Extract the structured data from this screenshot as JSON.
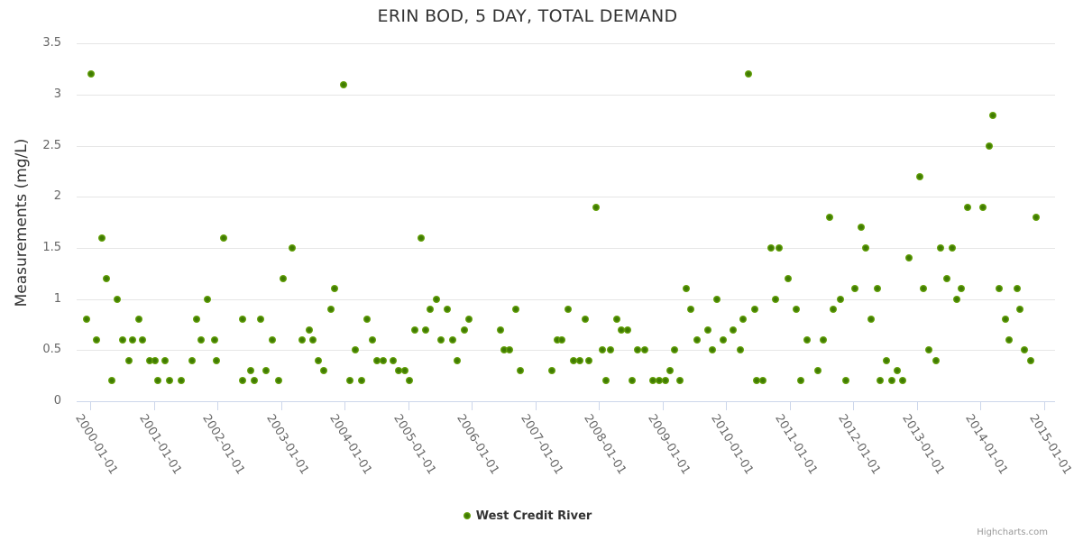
{
  "title": "ERIN BOD, 5 DAY, TOTAL DEMAND",
  "credits_label": "Highcharts.com",
  "legend": {
    "items": [
      {
        "label": "West Credit River",
        "color": "#5f9c07"
      }
    ]
  },
  "chart_data": {
    "type": "scatter",
    "title": "ERIN BOD, 5 DAY, TOTAL DEMAND",
    "xlabel": "",
    "ylabel": "Measurements (mg/L)",
    "ylim": [
      0,
      3.5
    ],
    "xlim_years": [
      1999.8,
      2015.2
    ],
    "grid": "horizontal",
    "legend_position": "bottom-center",
    "marker": {
      "shape": "circle",
      "fill": "#5f9c07",
      "center": "#3f7a03"
    },
    "yticks": [
      0,
      0.5,
      1,
      1.5,
      2,
      2.5,
      3,
      3.5
    ],
    "ytick_labels": [
      "0",
      "0.5",
      "1",
      "1.5",
      "2",
      "2.5",
      "3",
      "3.5"
    ],
    "xtick_labels": [
      "2000-01-01",
      "2001-01-01",
      "2002-01-01",
      "2003-01-01",
      "2004-01-01",
      "2005-01-01",
      "2006-01-01",
      "2007-01-01",
      "2008-01-01",
      "2009-01-01",
      "2010-01-01",
      "2011-01-01",
      "2012-01-01",
      "2013-01-01",
      "2014-01-01",
      "2015-01-01"
    ],
    "series": [
      {
        "name": "West Credit River",
        "points": [
          [
            2000.02,
            3.2
          ],
          [
            1999.94,
            0.8
          ],
          [
            2000.1,
            0.6
          ],
          [
            2000.18,
            1.6
          ],
          [
            2000.26,
            1.2
          ],
          [
            2000.34,
            0.2
          ],
          [
            2000.42,
            1.0
          ],
          [
            2000.51,
            0.6
          ],
          [
            2000.61,
            0.4
          ],
          [
            2000.67,
            0.6
          ],
          [
            2000.76,
            0.8
          ],
          [
            2000.82,
            0.6
          ],
          [
            2000.93,
            0.4
          ],
          [
            2001.02,
            0.4
          ],
          [
            2001.07,
            0.2
          ],
          [
            2001.17,
            0.4
          ],
          [
            2001.25,
            0.2
          ],
          [
            2001.43,
            0.2
          ],
          [
            2001.6,
            0.4
          ],
          [
            2001.68,
            0.8
          ],
          [
            2001.74,
            0.6
          ],
          [
            2001.85,
            1.0
          ],
          [
            2001.95,
            0.6
          ],
          [
            2001.99,
            0.4
          ],
          [
            2002.1,
            1.6
          ],
          [
            2002.4,
            0.8
          ],
          [
            2002.4,
            0.2
          ],
          [
            2002.52,
            0.3
          ],
          [
            2002.58,
            0.2
          ],
          [
            2002.68,
            0.8
          ],
          [
            2002.77,
            0.3
          ],
          [
            2002.86,
            0.6
          ],
          [
            2002.96,
            0.2
          ],
          [
            2003.03,
            1.2
          ],
          [
            2003.18,
            1.5
          ],
          [
            2003.33,
            0.6
          ],
          [
            2003.44,
            0.7
          ],
          [
            2003.5,
            0.6
          ],
          [
            2003.59,
            0.4
          ],
          [
            2003.68,
            0.3
          ],
          [
            2003.78,
            0.9
          ],
          [
            2003.84,
            1.1
          ],
          [
            2003.98,
            3.1
          ],
          [
            2004.09,
            0.2
          ],
          [
            2004.17,
            0.5
          ],
          [
            2004.27,
            0.2
          ],
          [
            2004.35,
            0.8
          ],
          [
            2004.44,
            0.6
          ],
          [
            2004.51,
            0.4
          ],
          [
            2004.61,
            0.4
          ],
          [
            2004.77,
            0.4
          ],
          [
            2004.85,
            0.3
          ],
          [
            2004.95,
            0.3
          ],
          [
            2005.02,
            0.2
          ],
          [
            2005.1,
            0.7
          ],
          [
            2005.2,
            1.6
          ],
          [
            2005.27,
            0.7
          ],
          [
            2005.35,
            0.9
          ],
          [
            2005.45,
            1.0
          ],
          [
            2005.52,
            0.6
          ],
          [
            2005.61,
            0.9
          ],
          [
            2005.7,
            0.6
          ],
          [
            2005.77,
            0.4
          ],
          [
            2005.88,
            0.7
          ],
          [
            2005.96,
            0.8
          ],
          [
            2006.46,
            0.7
          ],
          [
            2006.51,
            0.5
          ],
          [
            2006.6,
            0.5
          ],
          [
            2006.7,
            0.9
          ],
          [
            2006.76,
            0.3
          ],
          [
            2007.26,
            0.3
          ],
          [
            2007.35,
            0.6
          ],
          [
            2007.42,
            0.6
          ],
          [
            2007.51,
            0.9
          ],
          [
            2007.6,
            0.4
          ],
          [
            2007.7,
            0.4
          ],
          [
            2007.79,
            0.8
          ],
          [
            2007.84,
            0.4
          ],
          [
            2007.95,
            1.9
          ],
          [
            2008.05,
            0.5
          ],
          [
            2008.11,
            0.2
          ],
          [
            2008.18,
            0.5
          ],
          [
            2008.29,
            0.8
          ],
          [
            2008.35,
            0.7
          ],
          [
            2008.45,
            0.7
          ],
          [
            2008.53,
            0.2
          ],
          [
            2008.61,
            0.5
          ],
          [
            2008.72,
            0.5
          ],
          [
            2008.85,
            0.2
          ],
          [
            2008.95,
            0.2
          ],
          [
            2009.05,
            0.2
          ],
          [
            2009.12,
            0.3
          ],
          [
            2009.19,
            0.5
          ],
          [
            2009.28,
            0.2
          ],
          [
            2009.37,
            1.1
          ],
          [
            2009.44,
            0.9
          ],
          [
            2009.54,
            0.6
          ],
          [
            2009.72,
            0.7
          ],
          [
            2009.78,
            0.5
          ],
          [
            2009.86,
            1.0
          ],
          [
            2009.96,
            0.6
          ],
          [
            2010.11,
            0.7
          ],
          [
            2010.22,
            0.5
          ],
          [
            2010.27,
            0.8
          ],
          [
            2010.36,
            3.2
          ],
          [
            2010.46,
            0.9
          ],
          [
            2010.48,
            0.2
          ],
          [
            2010.58,
            0.2
          ],
          [
            2010.71,
            1.5
          ],
          [
            2010.78,
            1.0
          ],
          [
            2010.84,
            1.5
          ],
          [
            2010.98,
            1.2
          ],
          [
            2011.11,
            0.9
          ],
          [
            2011.18,
            0.2
          ],
          [
            2011.28,
            0.6
          ],
          [
            2011.45,
            0.3
          ],
          [
            2011.53,
            0.6
          ],
          [
            2011.63,
            1.8
          ],
          [
            2011.69,
            0.9
          ],
          [
            2011.8,
            1.0
          ],
          [
            2011.88,
            0.2
          ],
          [
            2012.03,
            1.1
          ],
          [
            2012.13,
            1.7
          ],
          [
            2012.2,
            1.5
          ],
          [
            2012.28,
            0.8
          ],
          [
            2012.38,
            1.1
          ],
          [
            2012.43,
            0.2
          ],
          [
            2012.52,
            0.4
          ],
          [
            2012.61,
            0.2
          ],
          [
            2012.7,
            0.3
          ],
          [
            2012.78,
            0.2
          ],
          [
            2012.88,
            1.4
          ],
          [
            2013.05,
            2.2
          ],
          [
            2013.11,
            1.1
          ],
          [
            2013.19,
            0.5
          ],
          [
            2013.3,
            0.4
          ],
          [
            2013.37,
            1.5
          ],
          [
            2013.47,
            1.2
          ],
          [
            2013.56,
            1.5
          ],
          [
            2013.63,
            1.0
          ],
          [
            2013.7,
            1.1
          ],
          [
            2013.8,
            1.9
          ],
          [
            2014.04,
            1.9
          ],
          [
            2014.14,
            2.5
          ],
          [
            2014.2,
            2.8
          ],
          [
            2014.3,
            1.1
          ],
          [
            2014.39,
            0.8
          ],
          [
            2014.46,
            0.6
          ],
          [
            2014.58,
            1.1
          ],
          [
            2014.62,
            0.9
          ],
          [
            2014.7,
            0.5
          ],
          [
            2014.8,
            0.4
          ],
          [
            2014.88,
            1.8
          ]
        ]
      }
    ]
  }
}
